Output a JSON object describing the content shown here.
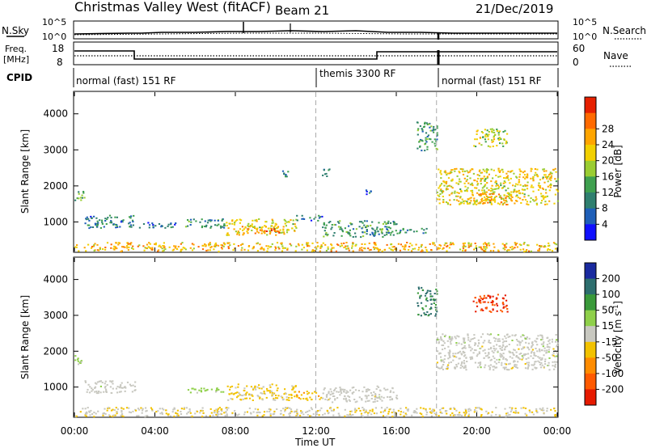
{
  "header": {
    "station": "Christmas Valley West (fitACF)",
    "beam": "Beam 21",
    "date": "21/Dec/2019"
  },
  "top_panel": {
    "left_label": "N.Sky",
    "right_label": "N.Search",
    "left_ticks": [
      "10^5",
      "10^0"
    ],
    "right_ticks": [
      "10^5",
      "10^0"
    ]
  },
  "freq_panel": {
    "left_label_line1": "Freq.",
    "left_label_line2": "[MHz]",
    "right_label": "Nave",
    "left_ticks": [
      "18",
      "8"
    ],
    "right_ticks": [
      "60",
      "0"
    ]
  },
  "cpid": {
    "label": "CPID",
    "segments": [
      {
        "text": "normal (fast) 151 RF",
        "start_hour": 0
      },
      {
        "text": "themis 3300 RF",
        "start_hour": 12
      },
      {
        "text": "normal (fast) 151 RF",
        "start_hour": 18
      }
    ]
  },
  "time_axis": {
    "label": "Time UT",
    "ticks": [
      "00:00",
      "04:00",
      "08:00",
      "12:00",
      "16:00",
      "20:00",
      "00:00"
    ]
  },
  "chart_data": [
    {
      "type": "heatmap",
      "title": "",
      "xlabel": "Time UT",
      "ylabel": "Slant Range [km]",
      "xlim": [
        0,
        24
      ],
      "ylim": [
        180,
        4600
      ],
      "yticks": [
        "1000",
        "2000",
        "3000",
        "4000"
      ],
      "colorbar": {
        "label": "Power [dB]",
        "ticks": [
          "4",
          "8",
          "12",
          "16",
          "20",
          "24",
          "28"
        ],
        "range": [
          0,
          30
        ],
        "colors": [
          "#1010ff",
          "#1f5fb8",
          "#2f7f6f",
          "#3fa04f",
          "#9acd32",
          "#f2d000",
          "#ffa500",
          "#ff6a00",
          "#e62000"
        ]
      },
      "regions": [
        {
          "t_start": 0.0,
          "t_end": 0.5,
          "range_low": 1600,
          "range_high": 1900,
          "level": 12
        },
        {
          "t_start": 0.5,
          "t_end": 3.0,
          "range_low": 850,
          "range_high": 1200,
          "level": 8
        },
        {
          "t_start": 3.0,
          "t_end": 5.0,
          "range_low": 850,
          "range_high": 1000,
          "level": 6
        },
        {
          "t_start": 5.5,
          "t_end": 7.5,
          "range_low": 850,
          "range_high": 1100,
          "level": 10
        },
        {
          "t_start": 7.5,
          "t_end": 11.0,
          "range_low": 650,
          "range_high": 1100,
          "level": 18
        },
        {
          "t_start": 8.3,
          "t_end": 10.2,
          "range_low": 700,
          "range_high": 900,
          "level": 24
        },
        {
          "t_start": 11.0,
          "t_end": 12.3,
          "range_low": 1050,
          "range_high": 1200,
          "level": 8
        },
        {
          "t_start": 12.3,
          "t_end": 16.0,
          "range_low": 600,
          "range_high": 1050,
          "level": 10
        },
        {
          "t_start": 16.0,
          "t_end": 17.5,
          "range_low": 700,
          "range_high": 850,
          "level": 8
        },
        {
          "t_start": 0.0,
          "t_end": 24.0,
          "range_low": 200,
          "range_high": 450,
          "level": 20
        },
        {
          "t_start": 18.0,
          "t_end": 24.0,
          "range_low": 1500,
          "range_high": 2500,
          "level": 18
        },
        {
          "t_start": 19.5,
          "t_end": 21.5,
          "range_low": 1500,
          "range_high": 1800,
          "level": 22
        },
        {
          "t_start": 17.0,
          "t_end": 18.0,
          "range_low": 3000,
          "range_high": 3800,
          "level": 10
        },
        {
          "t_start": 19.8,
          "t_end": 21.5,
          "range_low": 3100,
          "range_high": 3600,
          "level": 16
        },
        {
          "t_start": 10.3,
          "t_end": 10.8,
          "range_low": 2250,
          "range_high": 2450,
          "level": 8
        },
        {
          "t_start": 12.3,
          "t_end": 12.7,
          "range_low": 2250,
          "range_high": 2500,
          "level": 8
        },
        {
          "t_start": 14.4,
          "t_end": 14.7,
          "range_low": 1750,
          "range_high": 2000,
          "level": 6
        }
      ]
    },
    {
      "type": "heatmap",
      "title": "",
      "xlabel": "Time UT",
      "ylabel": "Slant Range [km]",
      "xlim": [
        0,
        24
      ],
      "ylim": [
        180,
        4600
      ],
      "yticks": [
        "1000",
        "2000",
        "3000",
        "4000"
      ],
      "colorbar": {
        "label": "Velocity [m s^-1]",
        "ticks": [
          "200",
          "100",
          "50",
          "15",
          "-15",
          "-50",
          "-100",
          "-200"
        ],
        "range": [
          -250,
          250
        ],
        "colors": [
          "#1a2a9f",
          "#2d6e6e",
          "#3a9a3a",
          "#8fd04a",
          "#c8c8c0",
          "#f2c200",
          "#ff8c00",
          "#ff5a00",
          "#e61a00"
        ]
      },
      "regions": [
        {
          "t_start": 0.0,
          "t_end": 0.5,
          "range_low": 1600,
          "range_high": 1900,
          "velocity": 40
        },
        {
          "t_start": 0.5,
          "t_end": 3.0,
          "range_low": 850,
          "range_high": 1200,
          "velocity": 0
        },
        {
          "t_start": 5.5,
          "t_end": 7.5,
          "range_low": 850,
          "range_high": 1000,
          "velocity": 40
        },
        {
          "t_start": 7.5,
          "t_end": 11.0,
          "range_low": 650,
          "range_high": 1100,
          "velocity": -40
        },
        {
          "t_start": 11.0,
          "t_end": 12.3,
          "range_low": 650,
          "range_high": 900,
          "velocity": -60
        },
        {
          "t_start": 12.3,
          "t_end": 16.0,
          "range_low": 600,
          "range_high": 1050,
          "velocity": 0
        },
        {
          "t_start": 0.0,
          "t_end": 24.0,
          "range_low": 200,
          "range_high": 450,
          "velocity": -20
        },
        {
          "t_start": 18.0,
          "t_end": 24.0,
          "range_low": 1500,
          "range_high": 2500,
          "velocity": 0
        },
        {
          "t_start": 19.8,
          "t_end": 21.5,
          "range_low": 3100,
          "range_high": 3600,
          "velocity": -200
        },
        {
          "t_start": 17.0,
          "t_end": 18.0,
          "range_low": 3000,
          "range_high": 3800,
          "velocity": 150
        }
      ]
    }
  ]
}
